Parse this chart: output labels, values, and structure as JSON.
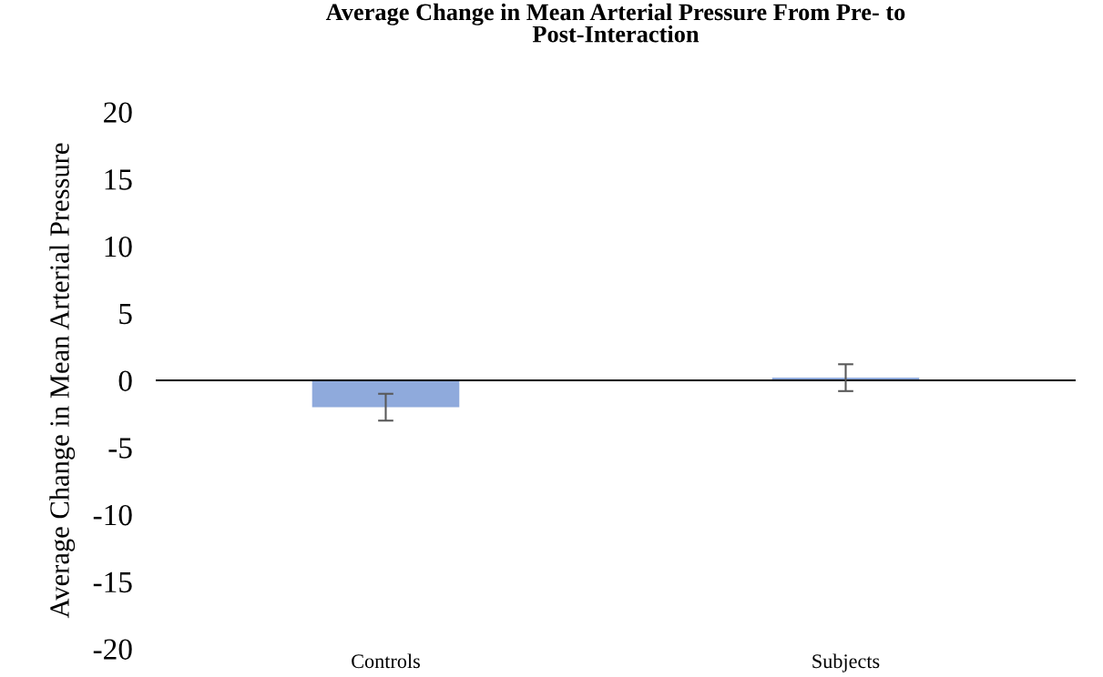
{
  "chart_data": {
    "type": "bar",
    "title": "Average Change in Mean Arterial Pressure From Pre- to Post-Interaction",
    "ylabel": "Average Change in Mean Arterial Pressure",
    "categories": [
      "Controls",
      "Subjects"
    ],
    "values": [
      -2.0,
      0.2
    ],
    "errors": [
      1.0,
      1.0
    ],
    "color": "#8faadc",
    "ylim": [
      -20,
      20
    ],
    "yticks": [
      -20,
      -15,
      -10,
      -5,
      0,
      5,
      10,
      15,
      20
    ],
    "ref_lines": [
      {
        "axis": "y",
        "value": 0,
        "color": "#000000"
      }
    ],
    "grid": false,
    "legend": false
  }
}
